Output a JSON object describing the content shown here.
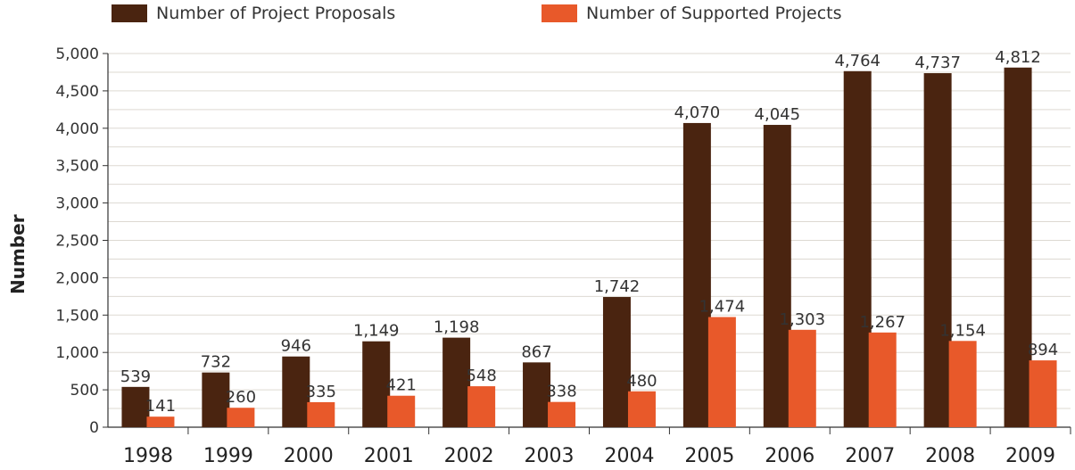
{
  "chart_data": {
    "type": "bar",
    "title": "",
    "xlabel": "",
    "ylabel": "Number",
    "ylim": [
      0,
      5000
    ],
    "yticks": [
      0,
      500,
      1000,
      1500,
      2000,
      2500,
      3000,
      3500,
      4000,
      4500,
      5000
    ],
    "ytick_labels": [
      "0",
      "500",
      "1,000",
      "1,500",
      "2,000",
      "2,500",
      "3,000",
      "3,500",
      "4,000",
      "4,500",
      "5,000"
    ],
    "grid": true,
    "legend": "top",
    "categories": [
      "1998",
      "1999",
      "2000",
      "2001",
      "2002",
      "2003",
      "2004",
      "2005",
      "2006",
      "2007",
      "2008",
      "2009"
    ],
    "series": [
      {
        "name": "Number of Project Proposals",
        "color": "#4a2410",
        "values": [
          539,
          732,
          946,
          1149,
          1198,
          867,
          1742,
          4070,
          4045,
          4764,
          4737,
          4812
        ],
        "labels": [
          "539",
          "732",
          "946",
          "1,149",
          "1,198",
          "867",
          "1,742",
          "4,070",
          "4,045",
          "4,764",
          "4,737",
          "4,812"
        ]
      },
      {
        "name": "Number of Supported Projects",
        "color": "#e8592a",
        "values": [
          141,
          260,
          335,
          421,
          548,
          338,
          480,
          1474,
          1303,
          1267,
          1154,
          894
        ],
        "labels": [
          "141",
          "260",
          "335",
          "421",
          "548",
          "338",
          "480",
          "1,474",
          "1,303",
          "1,267",
          "1,154",
          "894"
        ]
      }
    ]
  }
}
